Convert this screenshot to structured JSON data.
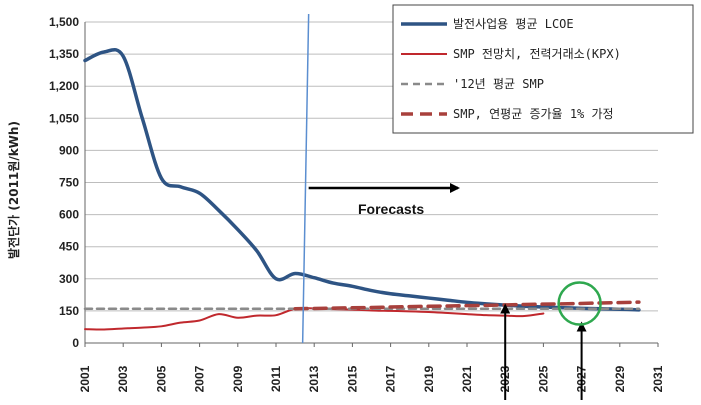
{
  "chart_data": {
    "type": "line",
    "title": "",
    "xlabel": "",
    "ylabel": "발전단가 (2011원/kWh)",
    "xlim": [
      2001,
      2031
    ],
    "ylim": [
      0,
      1500
    ],
    "xticks": [
      "2001",
      "2003",
      "2005",
      "2007",
      "2009",
      "2011",
      "2013",
      "2015",
      "2017",
      "2019",
      "2021",
      "2023",
      "2025",
      "2027",
      "2029",
      "2031"
    ],
    "yticks": [
      "0",
      "150",
      "300",
      "450",
      "600",
      "750",
      "900",
      "1,050",
      "1,200",
      "1,350",
      "1,500"
    ],
    "grid": "horizontal",
    "legend_position": "top-right",
    "series": [
      {
        "name": "발전사업용 평균 LCOE",
        "color": "#2e5484",
        "style": "solid-thick",
        "x": [
          2001,
          2002,
          2003,
          2004,
          2005,
          2006,
          2007,
          2008,
          2009,
          2010,
          2011,
          2012,
          2013,
          2014,
          2015,
          2016,
          2017,
          2018,
          2019,
          2020,
          2021,
          2022,
          2023,
          2024,
          2025,
          2026,
          2027,
          2028,
          2029,
          2030
        ],
        "y": [
          1320,
          1360,
          1340,
          1050,
          770,
          730,
          700,
          620,
          530,
          430,
          300,
          325,
          305,
          280,
          265,
          245,
          230,
          220,
          210,
          200,
          190,
          183,
          177,
          172,
          168,
          165,
          162,
          160,
          158,
          155
        ]
      },
      {
        "name": "SMP 전망치, 전력거래소(KPX)",
        "color": "#c0282d",
        "style": "solid",
        "x": [
          2001,
          2002,
          2003,
          2004,
          2005,
          2006,
          2007,
          2008,
          2009,
          2010,
          2011,
          2012,
          2013,
          2014,
          2015,
          2016,
          2017,
          2018,
          2019,
          2020,
          2021,
          2022,
          2023,
          2024,
          2025
        ],
        "y": [
          65,
          63,
          68,
          72,
          78,
          95,
          105,
          135,
          118,
          128,
          130,
          160,
          162,
          158,
          156,
          152,
          150,
          148,
          145,
          140,
          135,
          130,
          128,
          126,
          138
        ]
      },
      {
        "name": "'12년 평균 SMP",
        "color": "#8a8a8a",
        "style": "dashed",
        "x": [
          2001,
          2030
        ],
        "y": [
          160,
          160
        ]
      },
      {
        "name": "SMP, 연평균 증가율 1% 가정",
        "color": "#a8403c",
        "style": "dashed-thick",
        "x": [
          2012,
          2014,
          2016,
          2018,
          2020,
          2022,
          2024,
          2026,
          2028,
          2030
        ],
        "y": [
          160,
          163,
          166,
          170,
          173,
          176,
          180,
          183,
          187,
          191
        ]
      }
    ],
    "annotations": {
      "vertical_line_year": 2012.5,
      "forecast_label": "Forecasts",
      "up_arrow_years": [
        2023,
        2027
      ],
      "circle_center": {
        "year": 2027,
        "value": 175
      }
    }
  }
}
